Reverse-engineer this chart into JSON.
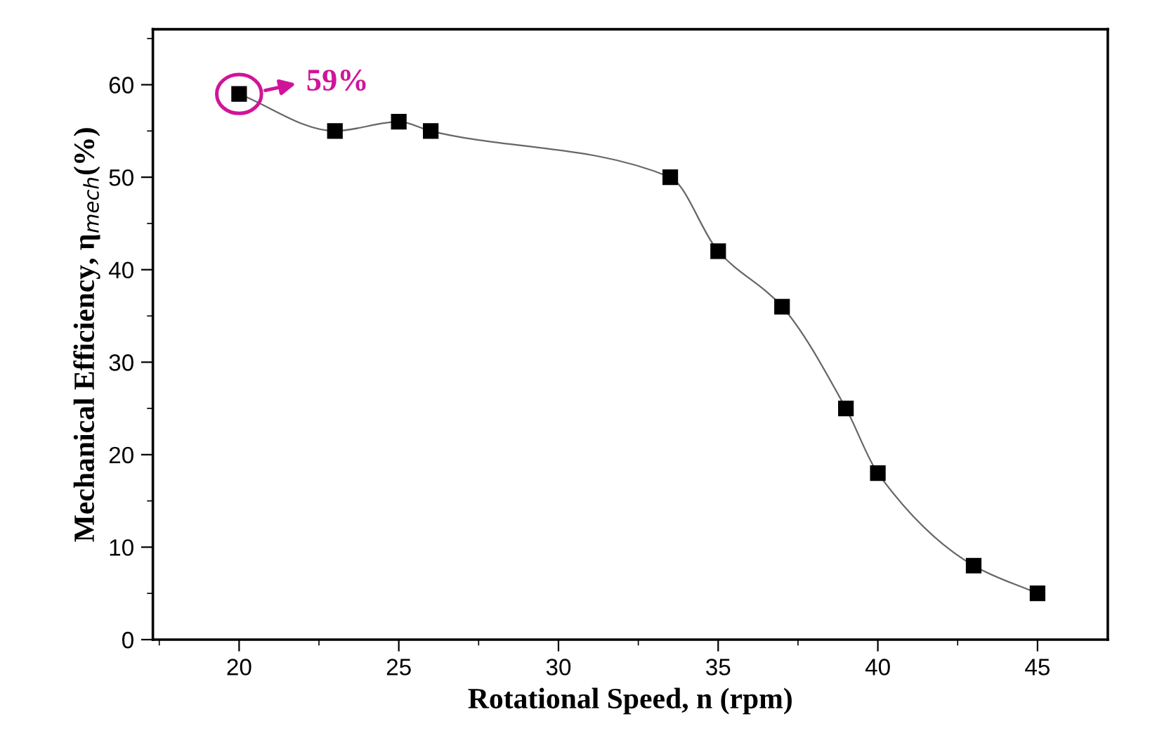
{
  "chart_data": {
    "type": "line",
    "xlabel": "Rotational Speed, n (rpm)",
    "ylabel": "Mechanical Efficiency, η$_{mech}$(%)",
    "x": [
      20,
      23,
      25,
      26,
      33.5,
      35,
      37,
      39,
      40,
      43,
      45
    ],
    "series": [
      {
        "color": "#000000",
        "values": [
          59,
          55,
          56,
          55,
          50,
          42,
          36,
          25,
          18,
          8,
          5
        ]
      }
    ],
    "marker": "square",
    "line_style": "solid",
    "grid": false,
    "legend": false,
    "xlim": [
      17.3,
      47.2
    ],
    "ylim": [
      0,
      66
    ],
    "xticks": [
      20,
      25,
      30,
      35,
      40,
      45
    ],
    "yticks": [
      0,
      10,
      20,
      30,
      40,
      50,
      60
    ],
    "annotations": [
      {
        "text": "59%",
        "x": 20,
        "y": 59
      }
    ]
  }
}
